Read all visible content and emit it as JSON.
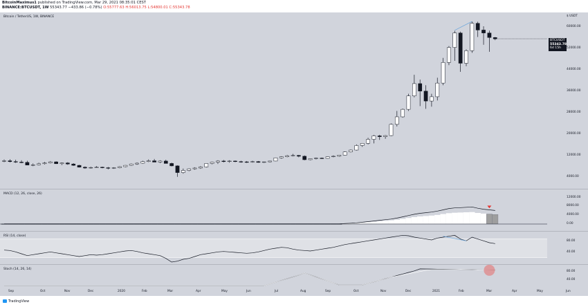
{
  "header": {
    "author": "BitcoinMaximus1",
    "published_text": " published on TradingView.com, Mar 29, 2021 08:35:01 CEST",
    "symbol": "BINANCE:BTCUSDT, 1W",
    "price": "55343.77",
    "change": "−433.86 (−0.78%)",
    "o": "O:55777.63",
    "h": "H:56013.75",
    "l": "L:54800.01",
    "c": "C:55343.78"
  },
  "main_pane": {
    "title": "Bitcoin / TetherUS, 1W, BINANCE",
    "price_badge": "BTCUSDT",
    "price_value": "55343.78",
    "price_countdown": "6d 15h",
    "axis_labels": [
      "$ USDT",
      "60000.00",
      "52000.00",
      "44000.00",
      "36000.00",
      "28000.00",
      "20000.00",
      "12000.00",
      "4000.00"
    ]
  },
  "macd_pane": {
    "title": "MACD (12, 26, close, 26)",
    "axis_labels": [
      "12000.00",
      "8000.00",
      "4000.00",
      "0.00"
    ]
  },
  "rsi_pane": {
    "title": "RSI (14, close)",
    "axis_labels": [
      "80.00",
      "40.00"
    ]
  },
  "stoch_pane": {
    "title": "Stoch (14, 26, 14)",
    "axis_labels": [
      "80.00",
      "40.00"
    ]
  },
  "time_axis": [
    "Sep",
    "Oct",
    "Nov",
    "Dec",
    "2020",
    "Feb",
    "Mar",
    "Apr",
    "May",
    "Jun",
    "Jul",
    "Aug",
    "Sep",
    "Oct",
    "Nov",
    "Dec",
    "2021",
    "Feb",
    "Mar",
    "Apr",
    "May",
    "Jun"
  ],
  "footer": {
    "brand": "TradingView"
  },
  "chart_data": {
    "type": "candlestick",
    "colors": {
      "up": "#ffffff",
      "down": "#131722",
      "background": "#d1d4dc",
      "signal": "#6fa8dc",
      "marker": "#e53935",
      "highlight": "#e57373"
    },
    "candles_ohlc": [
      [
        9600,
        10300,
        9300,
        9800
      ],
      [
        9800,
        10400,
        9200,
        9500
      ],
      [
        9500,
        10200,
        9000,
        9300
      ],
      [
        9300,
        10000,
        8900,
        9200
      ],
      [
        9200,
        9800,
        8600,
        8200
      ],
      [
        8200,
        8800,
        7800,
        8300
      ],
      [
        8300,
        9100,
        8100,
        8700
      ],
      [
        8700,
        9400,
        8400,
        9000
      ],
      [
        9000,
        9700,
        8800,
        9400
      ],
      [
        9400,
        9600,
        8600,
        8700
      ],
      [
        8700,
        9200,
        8200,
        9000
      ],
      [
        9000,
        9300,
        8300,
        8600
      ],
      [
        8600,
        8900,
        7900,
        8100
      ],
      [
        8100,
        8300,
        7300,
        7400
      ],
      [
        7400,
        7700,
        6800,
        7100
      ],
      [
        7100,
        7600,
        6900,
        7300
      ],
      [
        7300,
        7800,
        7100,
        7400
      ],
      [
        7400,
        7600,
        7000,
        7200
      ],
      [
        7200,
        7500,
        6600,
        7000
      ],
      [
        7000,
        7400,
        6800,
        7200
      ],
      [
        7200,
        7800,
        7000,
        7600
      ],
      [
        7600,
        8200,
        7400,
        8100
      ],
      [
        8100,
        8800,
        7900,
        8600
      ],
      [
        8600,
        9200,
        8300,
        8900
      ],
      [
        8900,
        9800,
        8700,
        9500
      ],
      [
        9500,
        10300,
        9300,
        9800
      ],
      [
        9800,
        10500,
        9400,
        9300
      ],
      [
        9300,
        10000,
        8900,
        9700
      ],
      [
        9700,
        10200,
        9200,
        8800
      ],
      [
        8800,
        9100,
        7700,
        7900
      ],
      [
        7900,
        8100,
        3800,
        5400
      ],
      [
        5400,
        6900,
        5000,
        6200
      ],
      [
        6200,
        7000,
        5900,
        6800
      ],
      [
        6800,
        7400,
        6500,
        7100
      ],
      [
        7100,
        7800,
        6800,
        7500
      ],
      [
        7500,
        8900,
        7300,
        8800
      ],
      [
        8800,
        9500,
        8500,
        9300
      ],
      [
        9300,
        10000,
        8600,
        9700
      ],
      [
        9700,
        10100,
        9200,
        9600
      ],
      [
        9600,
        10000,
        9100,
        9700
      ],
      [
        9700,
        9900,
        9300,
        9500
      ],
      [
        9500,
        9800,
        9100,
        9400
      ],
      [
        9400,
        9700,
        9000,
        9300
      ],
      [
        9300,
        9800,
        9100,
        9500
      ],
      [
        9500,
        9700,
        9100,
        9200
      ],
      [
        9200,
        9500,
        9000,
        9400
      ],
      [
        9400,
        9800,
        9200,
        9700
      ],
      [
        9700,
        11000,
        9600,
        10900
      ],
      [
        10900,
        11500,
        10600,
        11300
      ],
      [
        11300,
        12000,
        11100,
        11700
      ],
      [
        11700,
        12400,
        11400,
        11800
      ],
      [
        11800,
        12000,
        11100,
        11500
      ],
      [
        11500,
        11800,
        10000,
        10200
      ],
      [
        10200,
        10700,
        10000,
        10600
      ],
      [
        10600,
        11000,
        10300,
        10800
      ],
      [
        10800,
        11000,
        10500,
        10700
      ],
      [
        10700,
        11400,
        10600,
        11300
      ],
      [
        11300,
        11800,
        11100,
        11500
      ],
      [
        11500,
        12000,
        11300,
        11900
      ],
      [
        11900,
        13300,
        11800,
        13100
      ],
      [
        13100,
        14000,
        12900,
        13800
      ],
      [
        13800,
        15900,
        13600,
        15500
      ],
      [
        15500,
        16400,
        15000,
        16300
      ],
      [
        16300,
        18400,
        15900,
        17800
      ],
      [
        17800,
        19500,
        16300,
        19100
      ],
      [
        19100,
        19500,
        17600,
        18800
      ],
      [
        18800,
        19400,
        18000,
        19200
      ],
      [
        19200,
        23700,
        19000,
        23400
      ],
      [
        23400,
        28400,
        22600,
        26200
      ],
      [
        26200,
        29300,
        25900,
        29000
      ],
      [
        29000,
        34800,
        28400,
        34000
      ],
      [
        34000,
        41900,
        33500,
        38600
      ],
      [
        38600,
        40100,
        30200,
        35800
      ],
      [
        35800,
        38000,
        29200,
        32100
      ],
      [
        32100,
        34800,
        30000,
        33700
      ],
      [
        33700,
        40800,
        32300,
        38800
      ],
      [
        38800,
        48200,
        38000,
        46500
      ],
      [
        46500,
        52600,
        45500,
        52100
      ],
      [
        52100,
        58300,
        47100,
        57500
      ],
      [
        57500,
        58000,
        43000,
        46200
      ],
      [
        46200,
        51400,
        45100,
        50900
      ],
      [
        50900,
        61800,
        50100,
        61100
      ],
      [
        61100,
        61700,
        56000,
        58600
      ],
      [
        58600,
        60000,
        53100,
        57500
      ],
      [
        57500,
        58400,
        50500,
        55800
      ],
      [
        55800,
        56000,
        54800,
        55300
      ]
    ],
    "macd_histogram": [
      0,
      0,
      0,
      0,
      0,
      0,
      0,
      0,
      0,
      0,
      0,
      0,
      0,
      0,
      0,
      0,
      0,
      0,
      0,
      0,
      0,
      0,
      0,
      0,
      0,
      0,
      0,
      0,
      0,
      0,
      0,
      0,
      0,
      0,
      0,
      0,
      0,
      0,
      0,
      0,
      0,
      0,
      0,
      0,
      0,
      0,
      0,
      0,
      0,
      0,
      0,
      0,
      0,
      0,
      0,
      0,
      0,
      0,
      0,
      100,
      200,
      300,
      500,
      700,
      900,
      1100,
      1300,
      1500,
      1800,
      2200,
      2600,
      3000,
      3300,
      3500,
      3700,
      4000,
      4400,
      4800,
      5000,
      5100,
      5200,
      5300,
      4900,
      4600,
      4400,
      4200
    ],
    "macd_line_end": [
      0,
      3500,
      6800,
      9500,
      11200,
      12000
    ],
    "rsi_range": [
      30,
      90
    ],
    "stoch_range": [
      10,
      100
    ]
  }
}
